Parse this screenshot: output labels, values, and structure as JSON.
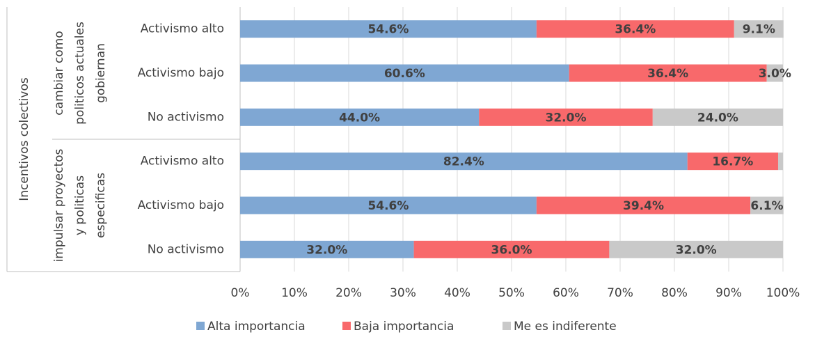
{
  "chart_data": {
    "type": "stacked-barh",
    "axis_group_label": "Incentivos colectivos",
    "groups": [
      {
        "lines": [
          "cambiar como",
          "politicos actuales",
          "gobiernan"
        ],
        "categories": [
          "Activismo alto",
          "Activismo bajo",
          "No activismo"
        ]
      },
      {
        "lines": [
          "impulsar proyectos",
          "y politicas",
          "especificas"
        ],
        "categories": [
          "Activismo alto",
          "Activismo bajo",
          "No activismo"
        ]
      }
    ],
    "series": [
      {
        "name": "Alta importancia",
        "color": "#7fa7d3",
        "values": [
          54.6,
          60.6,
          44.0,
          82.4,
          54.6,
          32.0
        ],
        "value_labels": [
          "54.6%",
          "60.6%",
          "44.0%",
          "82.4%",
          "54.6%",
          "32.0%"
        ]
      },
      {
        "name": "Baja importancia",
        "color": "#f8696b",
        "values": [
          36.4,
          36.4,
          32.0,
          16.7,
          39.4,
          36.0
        ],
        "value_labels": [
          "36.4%",
          "36.4%",
          "32.0%",
          "16.7%",
          "39.4%",
          "36.0%"
        ]
      },
      {
        "name": "Me es indiferente",
        "color": "#c9c9c9",
        "values": [
          9.1,
          3.0,
          24.0,
          0.9,
          6.1,
          32.0
        ],
        "value_labels": [
          "9.1%",
          "3.0%",
          "24.0%",
          null,
          "6.1%",
          "32.0%"
        ]
      }
    ],
    "xlim": [
      0,
      100
    ],
    "xticks": [
      {
        "value": 0,
        "label": "0%"
      },
      {
        "value": 10,
        "label": "10%"
      },
      {
        "value": 20,
        "label": "20%"
      },
      {
        "value": 30,
        "label": "30%"
      },
      {
        "value": 40,
        "label": "40%"
      },
      {
        "value": 50,
        "label": "50%"
      },
      {
        "value": 60,
        "label": "60%"
      },
      {
        "value": 70,
        "label": "70%"
      },
      {
        "value": 80,
        "label": "80%"
      },
      {
        "value": 90,
        "label": "90%"
      },
      {
        "value": 100,
        "label": "100%"
      }
    ],
    "grid": true,
    "legend": "bottom"
  }
}
